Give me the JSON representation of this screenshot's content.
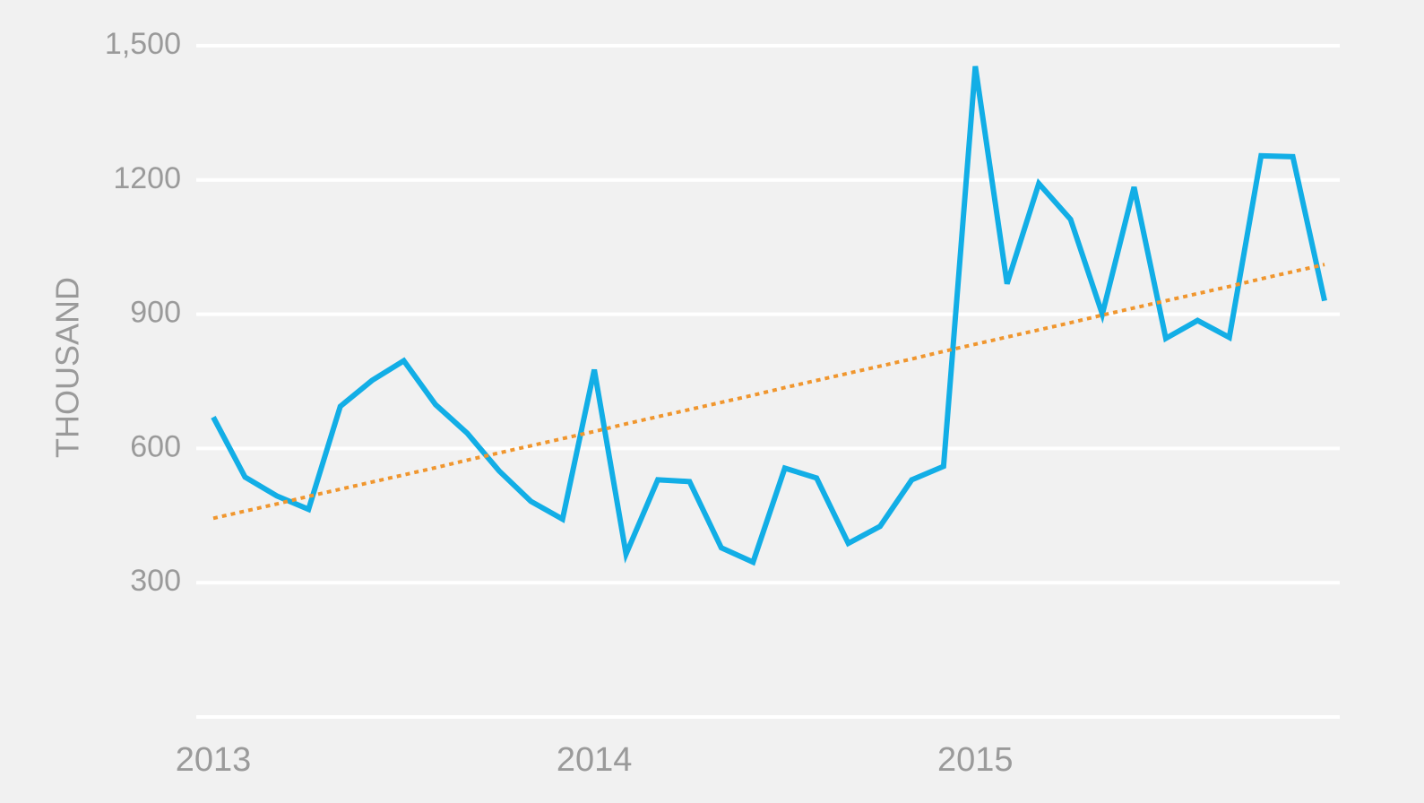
{
  "chart_data": {
    "type": "line",
    "y_label": "THOUSAND",
    "categories": [
      "2013",
      null,
      null,
      null,
      null,
      null,
      null,
      null,
      null,
      null,
      null,
      null,
      "2014",
      null,
      null,
      null,
      null,
      null,
      null,
      null,
      null,
      null,
      null,
      null,
      "2015",
      null,
      null,
      null,
      null,
      null,
      null,
      null,
      null,
      null,
      null,
      null
    ],
    "series": [
      {
        "color": "#12aee6",
        "style": "solid",
        "values": [
          670,
          536,
          494,
          464,
          694,
          752,
          796,
          698,
          634,
          550,
          482,
          442,
          776,
          364,
          530,
          526,
          378,
          346,
          556,
          534,
          388,
          426,
          530,
          560,
          1454,
          968,
          1192,
          1112,
          900,
          1184,
          846,
          886,
          848,
          1254,
          1252,
          930
        ]
      },
      {
        "color": "#f0962e",
        "style": "dotted",
        "values": [
          444,
          460,
          476,
          493,
          509,
          525,
          541,
          557,
          574,
          590,
          606,
          622,
          638,
          655,
          671,
          687,
          703,
          719,
          736,
          752,
          768,
          784,
          800,
          817,
          833,
          849,
          865,
          881,
          898,
          914,
          930,
          946,
          962,
          979,
          995,
          1011
        ]
      }
    ],
    "ylim": [
      0,
      1500
    ],
    "yticks": [
      300,
      600,
      900,
      1200,
      {
        "value": 1500,
        "label": "1,500"
      }
    ],
    "grid": true
  }
}
